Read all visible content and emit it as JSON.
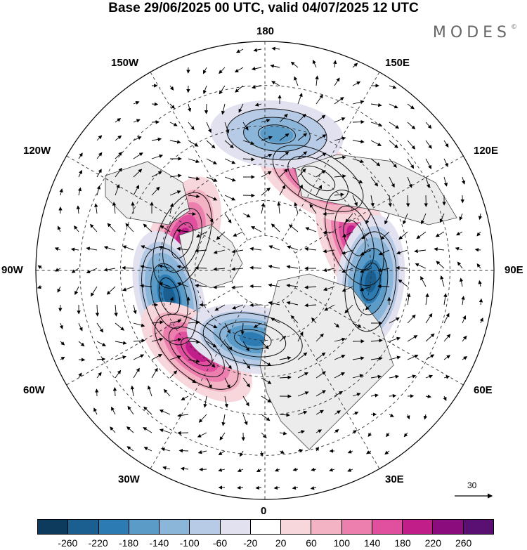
{
  "title": "Base 29/06/2025 00 UTC, valid 04/07/2025 12 UTC",
  "logo": "MODES",
  "logo_mark": "©",
  "longitude_labels": {
    "top": "180",
    "bottom": "0",
    "left": "90W",
    "right": "90E",
    "upper_left_1": "150W",
    "upper_left_2": "120W",
    "upper_right_1": "150E",
    "upper_right_2": "120E",
    "lower_left_1": "60W",
    "lower_left_2": "30W",
    "lower_right_1": "60E",
    "lower_right_2": "30E"
  },
  "wind_scale": {
    "label": "30"
  },
  "colorbar": {
    "ticks": [
      "-260",
      "-220",
      "-180",
      "-140",
      "-100",
      "-60",
      "-20",
      "20",
      "60",
      "100",
      "140",
      "180",
      "220",
      "260"
    ],
    "colors": [
      "#0d3b5e",
      "#1a5f8f",
      "#2c7bb3",
      "#5a9bc8",
      "#8cb6d9",
      "#b8cbe6",
      "#e2e1f0",
      "#ffffff",
      "#f7d7dc",
      "#f3b3c4",
      "#ec7fae",
      "#e0509e",
      "#c21e8a",
      "#8b0d7d",
      "#5a0f73"
    ]
  },
  "anomaly_features": [
    {
      "kind": "high",
      "lon": -110,
      "colat": 25,
      "value": 190
    },
    {
      "kind": "low",
      "lon": -75,
      "colat": 28,
      "value": -230
    },
    {
      "kind": "high",
      "lon": -40,
      "colat": 30,
      "value": 170
    },
    {
      "kind": "low",
      "lon": -10,
      "colat": 20,
      "value": -170
    },
    {
      "kind": "high",
      "lon": 110,
      "colat": 27,
      "value": 190
    },
    {
      "kind": "low",
      "lon": 84,
      "colat": 30,
      "value": -200
    },
    {
      "kind": "high",
      "lon": 150,
      "colat": 30,
      "value": 160
    },
    {
      "kind": "low",
      "lon": 175,
      "colat": 38,
      "value": -120
    }
  ]
}
